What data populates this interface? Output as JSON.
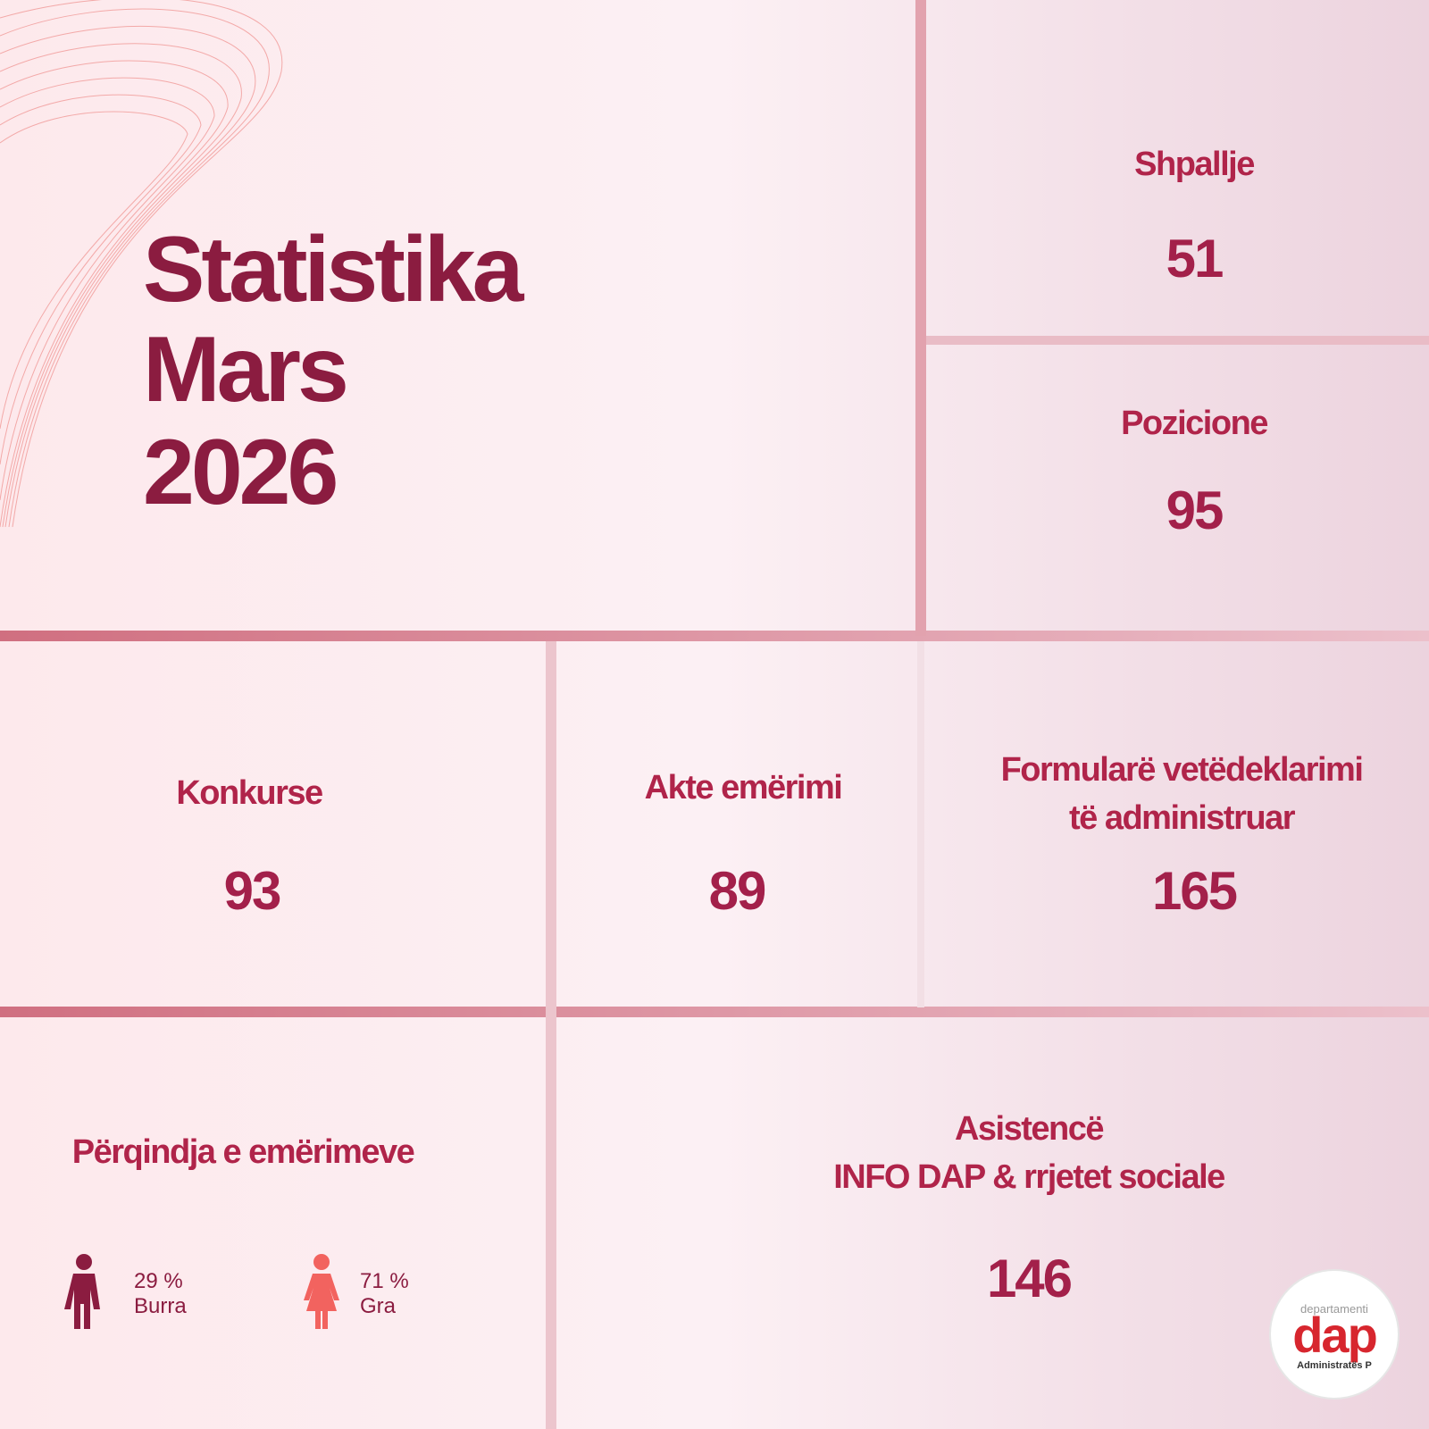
{
  "title": [
    "Statistika",
    "Mars",
    "2026"
  ],
  "stats": [
    {
      "label": [
        "Shpallje"
      ],
      "value": 51
    },
    {
      "label": [
        "Pozicione"
      ],
      "value": 95
    },
    {
      "label": [
        "Konkurse"
      ],
      "value": 93
    },
    {
      "label": [
        "Akte emërimi"
      ],
      "value": 89
    },
    {
      "label": [
        "Formularë vetëdeklarimi",
        "të administruar"
      ],
      "value": 165
    },
    {
      "label": [
        "Asistencë",
        "INFO DAP & rrjetet sociale"
      ],
      "value": 146
    }
  ],
  "gender": {
    "title": "Përqindja e emërimeve",
    "groups": [
      {
        "name": "Burra",
        "value": 29,
        "value_label": "29 %"
      },
      {
        "name": "Gra",
        "value": 71,
        "value_label": "71 %"
      }
    ]
  },
  "logo": {
    "top": "departamenti",
    "main": "dap",
    "bottom": "Administratës P"
  }
}
